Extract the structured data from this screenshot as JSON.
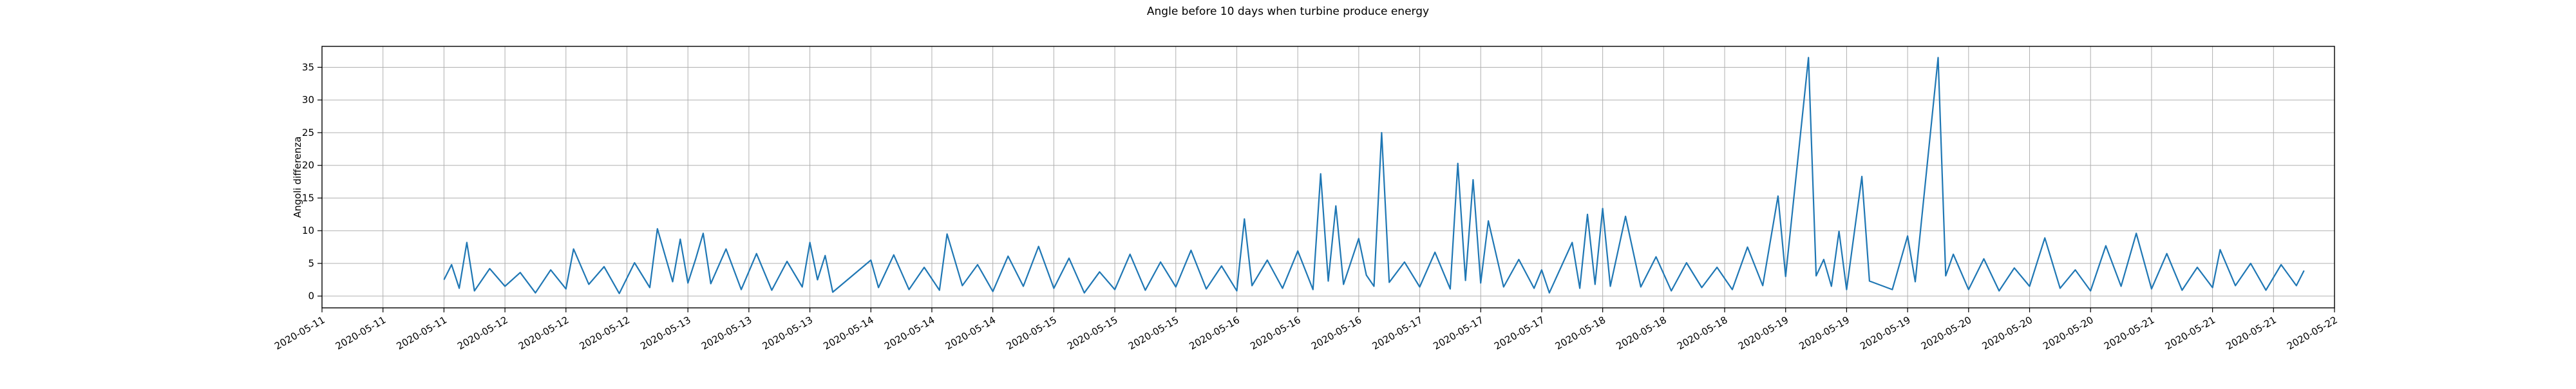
{
  "chart_data": {
    "type": "line",
    "title": "Angle before 10 days when turbine produce energy",
    "xlabel": "",
    "ylabel": "Angoli differenza",
    "grid": true,
    "ylim": [
      -1.8,
      38.2
    ],
    "yticks": [
      0,
      5,
      10,
      15,
      20,
      25,
      30,
      35
    ],
    "xlim": [
      "2020-05-11T00:00",
      "2020-05-22T00:00"
    ],
    "xtick_labels": [
      "2020-05-11",
      "2020-05-11",
      "2020-05-11",
      "2020-05-12",
      "2020-05-12",
      "2020-05-12",
      "2020-05-13",
      "2020-05-13",
      "2020-05-13",
      "2020-05-14",
      "2020-05-14",
      "2020-05-14",
      "2020-05-15",
      "2020-05-15",
      "2020-05-15",
      "2020-05-16",
      "2020-05-16",
      "2020-05-16",
      "2020-05-17",
      "2020-05-17",
      "2020-05-17",
      "2020-05-18",
      "2020-05-18",
      "2020-05-18",
      "2020-05-19",
      "2020-05-19",
      "2020-05-19",
      "2020-05-20",
      "2020-05-20",
      "2020-05-20",
      "2020-05-21",
      "2020-05-21",
      "2020-05-21",
      "2020-05-22"
    ],
    "color": "#1f77b4",
    "series": [
      {
        "points": [
          [
            "2020-05-11T16:00",
            2.5
          ],
          [
            "2020-05-11T17:00",
            4.8
          ],
          [
            "2020-05-11T18:00",
            1.2
          ],
          [
            "2020-05-11T19:00",
            8.2
          ],
          [
            "2020-05-11T20:00",
            0.8
          ],
          [
            "2020-05-11T22:00",
            4.2
          ],
          [
            "2020-05-12T00:00",
            1.5
          ],
          [
            "2020-05-12T02:00",
            3.6
          ],
          [
            "2020-05-12T04:00",
            0.5
          ],
          [
            "2020-05-12T06:00",
            4.0
          ],
          [
            "2020-05-12T08:00",
            1.1
          ],
          [
            "2020-05-12T09:00",
            7.2
          ],
          [
            "2020-05-12T11:00",
            1.8
          ],
          [
            "2020-05-12T13:00",
            4.5
          ],
          [
            "2020-05-12T15:00",
            0.4
          ],
          [
            "2020-05-12T17:00",
            5.1
          ],
          [
            "2020-05-12T19:00",
            1.3
          ],
          [
            "2020-05-12T20:00",
            10.3
          ],
          [
            "2020-05-12T22:00",
            2.2
          ],
          [
            "2020-05-12T23:00",
            8.7
          ],
          [
            "2020-05-13T00:00",
            2.0
          ],
          [
            "2020-05-13T01:00",
            5.6
          ],
          [
            "2020-05-13T02:00",
            9.6
          ],
          [
            "2020-05-13T03:00",
            1.9
          ],
          [
            "2020-05-13T05:00",
            7.2
          ],
          [
            "2020-05-13T07:00",
            1.0
          ],
          [
            "2020-05-13T09:00",
            6.5
          ],
          [
            "2020-05-13T11:00",
            0.9
          ],
          [
            "2020-05-13T13:00",
            5.3
          ],
          [
            "2020-05-13T15:00",
            1.4
          ],
          [
            "2020-05-13T16:00",
            8.2
          ],
          [
            "2020-05-13T17:00",
            2.5
          ],
          [
            "2020-05-13T18:00",
            6.2
          ],
          [
            "2020-05-13T19:00",
            0.6
          ],
          [
            "2020-05-14T00:00",
            5.5
          ],
          [
            "2020-05-14T01:00",
            1.3
          ],
          [
            "2020-05-14T03:00",
            6.3
          ],
          [
            "2020-05-14T05:00",
            1.0
          ],
          [
            "2020-05-14T07:00",
            4.4
          ],
          [
            "2020-05-14T09:00",
            0.9
          ],
          [
            "2020-05-14T10:00",
            9.5
          ],
          [
            "2020-05-14T12:00",
            1.6
          ],
          [
            "2020-05-14T14:00",
            4.8
          ],
          [
            "2020-05-14T16:00",
            0.7
          ],
          [
            "2020-05-14T18:00",
            6.1
          ],
          [
            "2020-05-14T20:00",
            1.5
          ],
          [
            "2020-05-14T22:00",
            7.6
          ],
          [
            "2020-05-15T00:00",
            1.2
          ],
          [
            "2020-05-15T02:00",
            5.8
          ],
          [
            "2020-05-15T04:00",
            0.5
          ],
          [
            "2020-05-15T06:00",
            3.7
          ],
          [
            "2020-05-15T08:00",
            1.0
          ],
          [
            "2020-05-15T10:00",
            6.4
          ],
          [
            "2020-05-15T12:00",
            0.9
          ],
          [
            "2020-05-15T14:00",
            5.2
          ],
          [
            "2020-05-15T16:00",
            1.4
          ],
          [
            "2020-05-15T18:00",
            7.0
          ],
          [
            "2020-05-15T20:00",
            1.1
          ],
          [
            "2020-05-15T22:00",
            4.6
          ],
          [
            "2020-05-16T00:00",
            0.8
          ],
          [
            "2020-05-16T01:00",
            11.8
          ],
          [
            "2020-05-16T02:00",
            1.6
          ],
          [
            "2020-05-16T04:00",
            5.5
          ],
          [
            "2020-05-16T06:00",
            1.2
          ],
          [
            "2020-05-16T08:00",
            6.9
          ],
          [
            "2020-05-16T10:00",
            1.0
          ],
          [
            "2020-05-16T11:00",
            18.7
          ],
          [
            "2020-05-16T12:00",
            2.3
          ],
          [
            "2020-05-16T13:00",
            13.8
          ],
          [
            "2020-05-16T14:00",
            1.8
          ],
          [
            "2020-05-16T16:00",
            8.8
          ],
          [
            "2020-05-16T17:00",
            3.2
          ],
          [
            "2020-05-16T18:00",
            1.5
          ],
          [
            "2020-05-16T19:00",
            25.0
          ],
          [
            "2020-05-16T20:00",
            2.1
          ],
          [
            "2020-05-16T22:00",
            5.2
          ],
          [
            "2020-05-17T00:00",
            1.4
          ],
          [
            "2020-05-17T02:00",
            6.7
          ],
          [
            "2020-05-17T04:00",
            1.1
          ],
          [
            "2020-05-17T05:00",
            20.3
          ],
          [
            "2020-05-17T06:00",
            2.4
          ],
          [
            "2020-05-17T07:00",
            17.8
          ],
          [
            "2020-05-17T08:00",
            2.0
          ],
          [
            "2020-05-17T09:00",
            11.5
          ],
          [
            "2020-05-17T11:00",
            1.4
          ],
          [
            "2020-05-17T13:00",
            5.6
          ],
          [
            "2020-05-17T15:00",
            1.2
          ],
          [
            "2020-05-17T16:00",
            4.0
          ],
          [
            "2020-05-17T17:00",
            0.5
          ],
          [
            "2020-05-17T20:00",
            8.2
          ],
          [
            "2020-05-17T21:00",
            1.2
          ],
          [
            "2020-05-17T22:00",
            12.5
          ],
          [
            "2020-05-17T23:00",
            1.8
          ],
          [
            "2020-05-18T00:00",
            13.4
          ],
          [
            "2020-05-18T01:00",
            1.5
          ],
          [
            "2020-05-18T03:00",
            12.2
          ],
          [
            "2020-05-18T05:00",
            1.4
          ],
          [
            "2020-05-18T07:00",
            6.0
          ],
          [
            "2020-05-18T09:00",
            0.8
          ],
          [
            "2020-05-18T11:00",
            5.1
          ],
          [
            "2020-05-18T13:00",
            1.3
          ],
          [
            "2020-05-18T15:00",
            4.4
          ],
          [
            "2020-05-18T17:00",
            1.0
          ],
          [
            "2020-05-18T19:00",
            7.5
          ],
          [
            "2020-05-18T21:00",
            1.6
          ],
          [
            "2020-05-18T23:00",
            15.3
          ],
          [
            "2020-05-19T00:00",
            3.0
          ],
          [
            "2020-05-19T03:00",
            36.5
          ],
          [
            "2020-05-19T04:00",
            3.1
          ],
          [
            "2020-05-19T05:00",
            5.6
          ],
          [
            "2020-05-19T06:00",
            1.5
          ],
          [
            "2020-05-19T07:00",
            9.9
          ],
          [
            "2020-05-19T08:00",
            1.0
          ],
          [
            "2020-05-19T10:00",
            18.3
          ],
          [
            "2020-05-19T11:00",
            2.3
          ],
          [
            "2020-05-19T14:00",
            1.0
          ],
          [
            "2020-05-19T16:00",
            9.2
          ],
          [
            "2020-05-19T17:00",
            2.2
          ],
          [
            "2020-05-19T20:00",
            36.5
          ],
          [
            "2020-05-19T21:00",
            3.1
          ],
          [
            "2020-05-19T22:00",
            6.4
          ],
          [
            "2020-05-20T00:00",
            1.0
          ],
          [
            "2020-05-20T02:00",
            5.7
          ],
          [
            "2020-05-20T04:00",
            0.8
          ],
          [
            "2020-05-20T06:00",
            4.3
          ],
          [
            "2020-05-20T08:00",
            1.5
          ],
          [
            "2020-05-20T10:00",
            8.9
          ],
          [
            "2020-05-20T12:00",
            1.2
          ],
          [
            "2020-05-20T14:00",
            4.0
          ],
          [
            "2020-05-20T16:00",
            0.8
          ],
          [
            "2020-05-20T18:00",
            7.7
          ],
          [
            "2020-05-20T20:00",
            1.5
          ],
          [
            "2020-05-20T22:00",
            9.6
          ],
          [
            "2020-05-21T00:00",
            1.1
          ],
          [
            "2020-05-21T02:00",
            6.5
          ],
          [
            "2020-05-21T04:00",
            0.9
          ],
          [
            "2020-05-21T06:00",
            4.4
          ],
          [
            "2020-05-21T08:00",
            1.3
          ],
          [
            "2020-05-21T09:00",
            7.1
          ],
          [
            "2020-05-21T11:00",
            1.6
          ],
          [
            "2020-05-21T13:00",
            5.0
          ],
          [
            "2020-05-21T15:00",
            0.9
          ],
          [
            "2020-05-21T17:00",
            4.8
          ],
          [
            "2020-05-21T19:00",
            1.6
          ],
          [
            "2020-05-21T20:00",
            3.9
          ]
        ]
      }
    ]
  }
}
